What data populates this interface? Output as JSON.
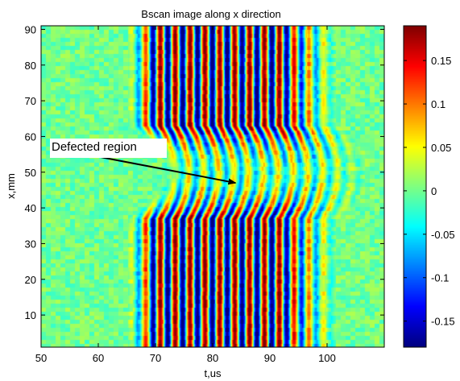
{
  "chart_data": {
    "type": "heatmap",
    "title": "Bscan image along x direction",
    "xlabel": "t,us",
    "ylabel": "x,mm",
    "xlim": [
      50,
      110
    ],
    "ylim": [
      1,
      91
    ],
    "xticks": [
      50,
      60,
      70,
      80,
      90,
      100
    ],
    "yticks": [
      10,
      20,
      30,
      40,
      50,
      60,
      70,
      80,
      90
    ],
    "colorbar": {
      "clim": [
        -0.18,
        0.19
      ],
      "ticks": [
        -0.15,
        -0.1,
        -0.05,
        0,
        0.05,
        0.1,
        0.15
      ],
      "tick_labels": [
        "-0.15",
        "-0.1",
        "-0.05",
        "0",
        "0.05",
        "0.1",
        "0.15"
      ],
      "colormap": "jet"
    },
    "wave": {
      "onset_us": 65,
      "end_us": 102,
      "period_us": 2.6,
      "peak_amplitude": 0.19,
      "defect_x_range_mm": [
        37,
        63
      ],
      "defect_center_mm": 50,
      "defect_time_shift_us": 6,
      "defect_amplitude": 0.06
    },
    "annotation": {
      "text": "Defected region",
      "arrow_from": [
        59.5,
        54.5
      ],
      "arrow_to": [
        84,
        47
      ]
    },
    "grid": false,
    "legend": "none"
  }
}
